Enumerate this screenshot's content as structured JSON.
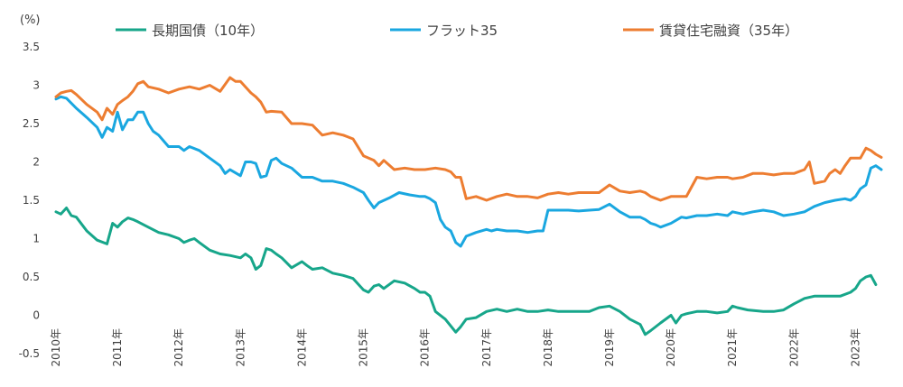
{
  "chart_data": {
    "type": "line",
    "ylabel": "(%)",
    "ylim": [
      -0.5,
      3.5
    ],
    "yticks": [
      "3.5",
      "3",
      "2.5",
      "2",
      "1.5",
      "1",
      "0.5",
      "0",
      "-0.5"
    ],
    "x_labels": [
      "2010年",
      "2011年",
      "2012年",
      "2013年",
      "2014年",
      "2015年",
      "2016年",
      "2017年",
      "2018年",
      "2019年",
      "2020年",
      "2021年",
      "2022年",
      "2023年"
    ],
    "x_start_year": 2010,
    "x_end_year": 2023.42,
    "grid": false,
    "legend_position": "top",
    "series": [
      {
        "name": "長期国債（10年）",
        "color": "#17a68a",
        "x": [
          2010.0,
          2010.08,
          2010.17,
          2010.25,
          2010.33,
          2010.5,
          2010.67,
          2010.83,
          2010.92,
          2011.0,
          2011.08,
          2011.17,
          2011.25,
          2011.33,
          2011.5,
          2011.67,
          2011.83,
          2012.0,
          2012.08,
          2012.17,
          2012.25,
          2012.33,
          2012.5,
          2012.67,
          2012.83,
          2013.0,
          2013.08,
          2013.17,
          2013.25,
          2013.33,
          2013.42,
          2013.5,
          2013.58,
          2013.67,
          2013.83,
          2014.0,
          2014.08,
          2014.17,
          2014.33,
          2014.5,
          2014.67,
          2014.83,
          2015.0,
          2015.08,
          2015.17,
          2015.25,
          2015.33,
          2015.5,
          2015.67,
          2015.83,
          2015.92,
          2016.0,
          2016.08,
          2016.17,
          2016.33,
          2016.5,
          2016.58,
          2016.67,
          2016.83,
          2017.0,
          2017.17,
          2017.33,
          2017.5,
          2017.67,
          2017.83,
          2018.0,
          2018.17,
          2018.33,
          2018.5,
          2018.67,
          2018.83,
          2019.0,
          2019.17,
          2019.33,
          2019.5,
          2019.58,
          2019.67,
          2019.83,
          2020.0,
          2020.08,
          2020.17,
          2020.25,
          2020.42,
          2020.58,
          2020.75,
          2020.92,
          2021.0,
          2021.08,
          2021.25,
          2021.5,
          2021.67,
          2021.83,
          2022.0,
          2022.17,
          2022.33,
          2022.5,
          2022.58,
          2022.75,
          2022.92,
          2023.0,
          2023.08,
          2023.17,
          2023.25,
          2023.33
        ],
        "y": [
          1.35,
          1.32,
          1.4,
          1.3,
          1.28,
          1.1,
          0.98,
          0.93,
          1.2,
          1.15,
          1.22,
          1.27,
          1.25,
          1.22,
          1.15,
          1.08,
          1.05,
          1.0,
          0.95,
          0.98,
          1.0,
          0.95,
          0.85,
          0.8,
          0.78,
          0.75,
          0.8,
          0.75,
          0.6,
          0.65,
          0.87,
          0.85,
          0.8,
          0.75,
          0.62,
          0.7,
          0.65,
          0.6,
          0.62,
          0.55,
          0.52,
          0.48,
          0.33,
          0.3,
          0.38,
          0.4,
          0.35,
          0.45,
          0.42,
          0.35,
          0.3,
          0.3,
          0.25,
          0.05,
          -0.05,
          -0.22,
          -0.15,
          -0.05,
          -0.03,
          0.05,
          0.08,
          0.05,
          0.08,
          0.05,
          0.05,
          0.07,
          0.05,
          0.05,
          0.05,
          0.05,
          0.1,
          0.12,
          0.05,
          -0.05,
          -0.12,
          -0.25,
          -0.2,
          -0.1,
          0.0,
          -0.1,
          0.0,
          0.02,
          0.05,
          0.05,
          0.03,
          0.05,
          0.12,
          0.1,
          0.07,
          0.05,
          0.05,
          0.07,
          0.15,
          0.22,
          0.25,
          0.25,
          0.25,
          0.25,
          0.3,
          0.35,
          0.45,
          0.5,
          0.52,
          0.4
        ]
      },
      {
        "name": "フラット35",
        "color": "#1aa7e0",
        "x": [
          2010.0,
          2010.08,
          2010.17,
          2010.33,
          2010.5,
          2010.67,
          2010.75,
          2010.83,
          2010.92,
          2011.0,
          2011.08,
          2011.17,
          2011.25,
          2011.33,
          2011.42,
          2011.5,
          2011.58,
          2011.67,
          2011.83,
          2012.0,
          2012.08,
          2012.17,
          2012.33,
          2012.5,
          2012.67,
          2012.75,
          2012.83,
          2013.0,
          2013.08,
          2013.17,
          2013.25,
          2013.33,
          2013.42,
          2013.5,
          2013.58,
          2013.67,
          2013.83,
          2014.0,
          2014.17,
          2014.33,
          2014.5,
          2014.67,
          2014.83,
          2015.0,
          2015.08,
          2015.17,
          2015.25,
          2015.42,
          2015.58,
          2015.75,
          2015.92,
          2016.0,
          2016.08,
          2016.17,
          2016.25,
          2016.33,
          2016.42,
          2016.5,
          2016.58,
          2016.67,
          2016.83,
          2017.0,
          2017.08,
          2017.17,
          2017.33,
          2017.5,
          2017.67,
          2017.83,
          2017.92,
          2018.0,
          2018.17,
          2018.33,
          2018.5,
          2018.67,
          2018.83,
          2019.0,
          2019.17,
          2019.33,
          2019.5,
          2019.58,
          2019.67,
          2019.75,
          2019.83,
          2020.0,
          2020.17,
          2020.25,
          2020.42,
          2020.58,
          2020.75,
          2020.92,
          2021.0,
          2021.17,
          2021.33,
          2021.5,
          2021.67,
          2021.83,
          2022.0,
          2022.17,
          2022.33,
          2022.5,
          2022.67,
          2022.83,
          2022.92,
          2023.0,
          2023.08,
          2023.17,
          2023.25,
          2023.33,
          2023.42
        ],
        "y": [
          2.82,
          2.85,
          2.83,
          2.7,
          2.58,
          2.45,
          2.32,
          2.45,
          2.4,
          2.65,
          2.42,
          2.55,
          2.55,
          2.65,
          2.65,
          2.5,
          2.4,
          2.35,
          2.2,
          2.2,
          2.15,
          2.2,
          2.15,
          2.05,
          1.95,
          1.85,
          1.9,
          1.82,
          2.0,
          2.0,
          1.98,
          1.8,
          1.82,
          2.02,
          2.05,
          1.98,
          1.92,
          1.8,
          1.8,
          1.75,
          1.75,
          1.72,
          1.67,
          1.6,
          1.5,
          1.4,
          1.47,
          1.53,
          1.6,
          1.57,
          1.55,
          1.55,
          1.52,
          1.47,
          1.25,
          1.15,
          1.1,
          0.95,
          0.9,
          1.03,
          1.08,
          1.12,
          1.1,
          1.12,
          1.1,
          1.1,
          1.08,
          1.1,
          1.1,
          1.37,
          1.37,
          1.37,
          1.36,
          1.37,
          1.38,
          1.45,
          1.35,
          1.28,
          1.28,
          1.25,
          1.2,
          1.18,
          1.15,
          1.2,
          1.28,
          1.27,
          1.3,
          1.3,
          1.32,
          1.3,
          1.35,
          1.32,
          1.35,
          1.37,
          1.35,
          1.3,
          1.32,
          1.35,
          1.42,
          1.47,
          1.5,
          1.52,
          1.5,
          1.55,
          1.65,
          1.7,
          1.92,
          1.95,
          1.9
        ]
      },
      {
        "name": "賃貸住宅融資（35年）",
        "color": "#ed7d31",
        "x": [
          2010.0,
          2010.08,
          2010.17,
          2010.25,
          2010.33,
          2010.5,
          2010.67,
          2010.75,
          2010.83,
          2010.92,
          2011.0,
          2011.08,
          2011.17,
          2011.25,
          2011.33,
          2011.42,
          2011.5,
          2011.67,
          2011.83,
          2012.0,
          2012.17,
          2012.33,
          2012.5,
          2012.67,
          2012.83,
          2012.92,
          2013.0,
          2013.17,
          2013.25,
          2013.33,
          2013.42,
          2013.5,
          2013.67,
          2013.83,
          2014.0,
          2014.17,
          2014.33,
          2014.5,
          2014.67,
          2014.83,
          2015.0,
          2015.17,
          2015.25,
          2015.33,
          2015.5,
          2015.67,
          2015.83,
          2016.0,
          2016.17,
          2016.33,
          2016.42,
          2016.5,
          2016.58,
          2016.67,
          2016.83,
          2017.0,
          2017.17,
          2017.33,
          2017.5,
          2017.67,
          2017.83,
          2018.0,
          2018.17,
          2018.33,
          2018.5,
          2018.67,
          2018.83,
          2019.0,
          2019.17,
          2019.33,
          2019.5,
          2019.58,
          2019.67,
          2019.83,
          2020.0,
          2020.17,
          2020.25,
          2020.42,
          2020.58,
          2020.75,
          2020.92,
          2021.0,
          2021.17,
          2021.33,
          2021.5,
          2021.67,
          2021.83,
          2022.0,
          2022.17,
          2022.25,
          2022.33,
          2022.5,
          2022.58,
          2022.67,
          2022.75,
          2022.83,
          2022.92,
          2023.0,
          2023.08,
          2023.17,
          2023.25,
          2023.33,
          2023.42
        ],
        "y": [
          2.85,
          2.9,
          2.92,
          2.93,
          2.88,
          2.75,
          2.65,
          2.55,
          2.7,
          2.62,
          2.75,
          2.8,
          2.85,
          2.92,
          3.02,
          3.05,
          2.98,
          2.95,
          2.9,
          2.95,
          2.98,
          2.95,
          3.0,
          2.92,
          3.1,
          3.05,
          3.05,
          2.9,
          2.85,
          2.78,
          2.65,
          2.66,
          2.65,
          2.5,
          2.5,
          2.48,
          2.35,
          2.38,
          2.35,
          2.3,
          2.08,
          2.02,
          1.95,
          2.02,
          1.9,
          1.92,
          1.9,
          1.9,
          1.92,
          1.9,
          1.87,
          1.8,
          1.8,
          1.52,
          1.55,
          1.5,
          1.55,
          1.58,
          1.55,
          1.55,
          1.53,
          1.58,
          1.6,
          1.58,
          1.6,
          1.6,
          1.6,
          1.7,
          1.62,
          1.6,
          1.62,
          1.6,
          1.55,
          1.5,
          1.55,
          1.55,
          1.55,
          1.8,
          1.78,
          1.8,
          1.8,
          1.78,
          1.8,
          1.85,
          1.85,
          1.83,
          1.85,
          1.85,
          1.9,
          2.0,
          1.72,
          1.75,
          1.85,
          1.9,
          1.85,
          1.95,
          2.05,
          2.05,
          2.05,
          2.18,
          2.15,
          2.1,
          2.06
        ]
      }
    ]
  }
}
